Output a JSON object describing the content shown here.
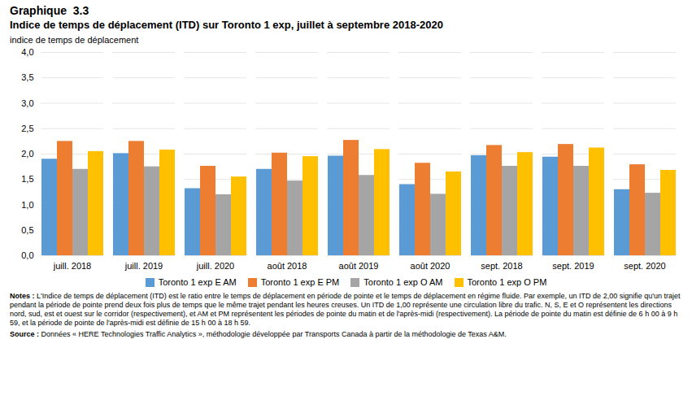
{
  "chart_data": {
    "type": "bar",
    "title": "Graphique  3.3",
    "subtitle": "Indice de temps de déplacement (ITD) sur Toronto 1 exp, juillet à septembre 2018-2020",
    "y_label": "indice de temps de déplacement",
    "categories": [
      "juill. 2018",
      "juill. 2019",
      "juill. 2020",
      "août 2018",
      "août 2019",
      "août 2020",
      "sept. 2018",
      "sept. 2019",
      "sept. 2020"
    ],
    "series": [
      {
        "name": "Toronto 1 exp E AM",
        "color": "#5B9BD5",
        "values": [
          1.9,
          2.01,
          1.32,
          1.7,
          1.96,
          1.4,
          1.97,
          1.94,
          1.3
        ]
      },
      {
        "name": "Toronto 1 exp E PM",
        "color": "#ED7D31",
        "values": [
          2.25,
          2.25,
          1.76,
          2.02,
          2.27,
          1.82,
          2.17,
          2.19,
          1.79
        ]
      },
      {
        "name": "Toronto 1 exp O AM",
        "color": "#A5A5A5",
        "values": [
          1.7,
          1.75,
          1.2,
          1.47,
          1.58,
          1.21,
          1.76,
          1.76,
          1.23
        ]
      },
      {
        "name": "Toronto 1 exp O PM",
        "color": "#FFC000",
        "values": [
          2.05,
          2.08,
          1.55,
          1.95,
          2.09,
          1.65,
          2.03,
          2.12,
          1.68
        ]
      }
    ],
    "ylim": [
      0.0,
      4.0
    ],
    "yticks": [
      {
        "value": 0.0,
        "label": "0,0"
      },
      {
        "value": 0.5,
        "label": "0,5"
      },
      {
        "value": 1.0,
        "label": "1,0"
      },
      {
        "value": 1.5,
        "label": "1,5"
      },
      {
        "value": 2.0,
        "label": "2,0"
      },
      {
        "value": 2.5,
        "label": "2,5"
      },
      {
        "value": 3.0,
        "label": "3,0"
      },
      {
        "value": 3.5,
        "label": "3,5"
      },
      {
        "value": 4.0,
        "label": "4,0"
      }
    ],
    "grid": true,
    "legend": "bottom",
    "annotations": [
      "Notes : L'Indice de temps de déplacement (ITD) est le ratio entre le temps de déplacement en période de pointe et le temps de déplacement en régime fluide. Par exemple, un ITD de 2,00 signifie qu'un trajet pendant la période de pointe prend deux fois plus de temps que le même trajet pendant les heures creuses. Un ITD de 1,00 représente une circulation libre du trafic. N, S, E et O représentent les directions nord, sud, est et ouest sur le corridor (respectivement), et AM et PM représentent les périodes de pointe du matin et de l'après-midi (respectivement). La période de pointe du matin est définie de 6 h 00 à 9 h 59, et la période de pointe de l'après-midi est définie de 15 h 00 à 18 h 59.",
      "Source : Données « HERE Technologies Traffic Analytics », méthodologie développée par Transports Canada à partir de la méthodologie de Texas A&M."
    ]
  }
}
